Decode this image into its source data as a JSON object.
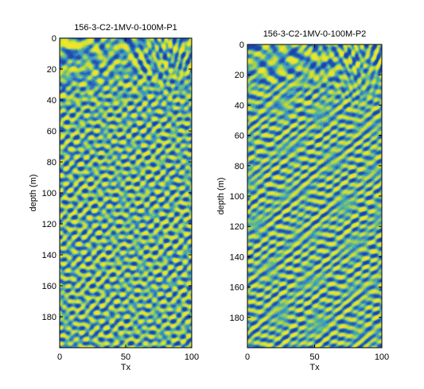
{
  "chart_data": [
    {
      "type": "heatmap",
      "title": "156-3-C2-1MV-0-100M-P1",
      "xlabel": "Tx",
      "ylabel": "depth (m)",
      "xlim": [
        0,
        100
      ],
      "ylim": [
        0,
        200
      ],
      "y_reversed": true,
      "xticks": [
        0,
        50,
        100
      ],
      "yticks": [
        0,
        20,
        40,
        60,
        80,
        100,
        120,
        140,
        160,
        180
      ],
      "colormap": [
        "#1b3fa6",
        "#3f8fc9",
        "#4fb59c",
        "#a9cf4a",
        "#f2e62a"
      ],
      "structure": "dense wavy blue/yellow interference bands; nearly horizontal continuous layers in top ~0-50 m, finer dipping criss-cross texture below",
      "grid": false
    },
    {
      "type": "heatmap",
      "title": "156-3-C2-1MV-0-100M-P2",
      "xlabel": "Tx",
      "ylabel": "depth (m)",
      "xlim": [
        0,
        100
      ],
      "ylim": [
        0,
        200
      ],
      "y_reversed": true,
      "xticks": [
        0,
        50,
        100
      ],
      "yticks": [
        0,
        20,
        40,
        60,
        80,
        100,
        120,
        140,
        160,
        180
      ],
      "colormap": [
        "#1b3fa6",
        "#3f8fc9",
        "#4fb59c",
        "#a9cf4a",
        "#f2e62a"
      ],
      "structure": "dense wavy blue/yellow interference bands; strong horizontal layering in top ~0-60 m, finer dipping criss-cross texture below",
      "grid": false
    }
  ]
}
